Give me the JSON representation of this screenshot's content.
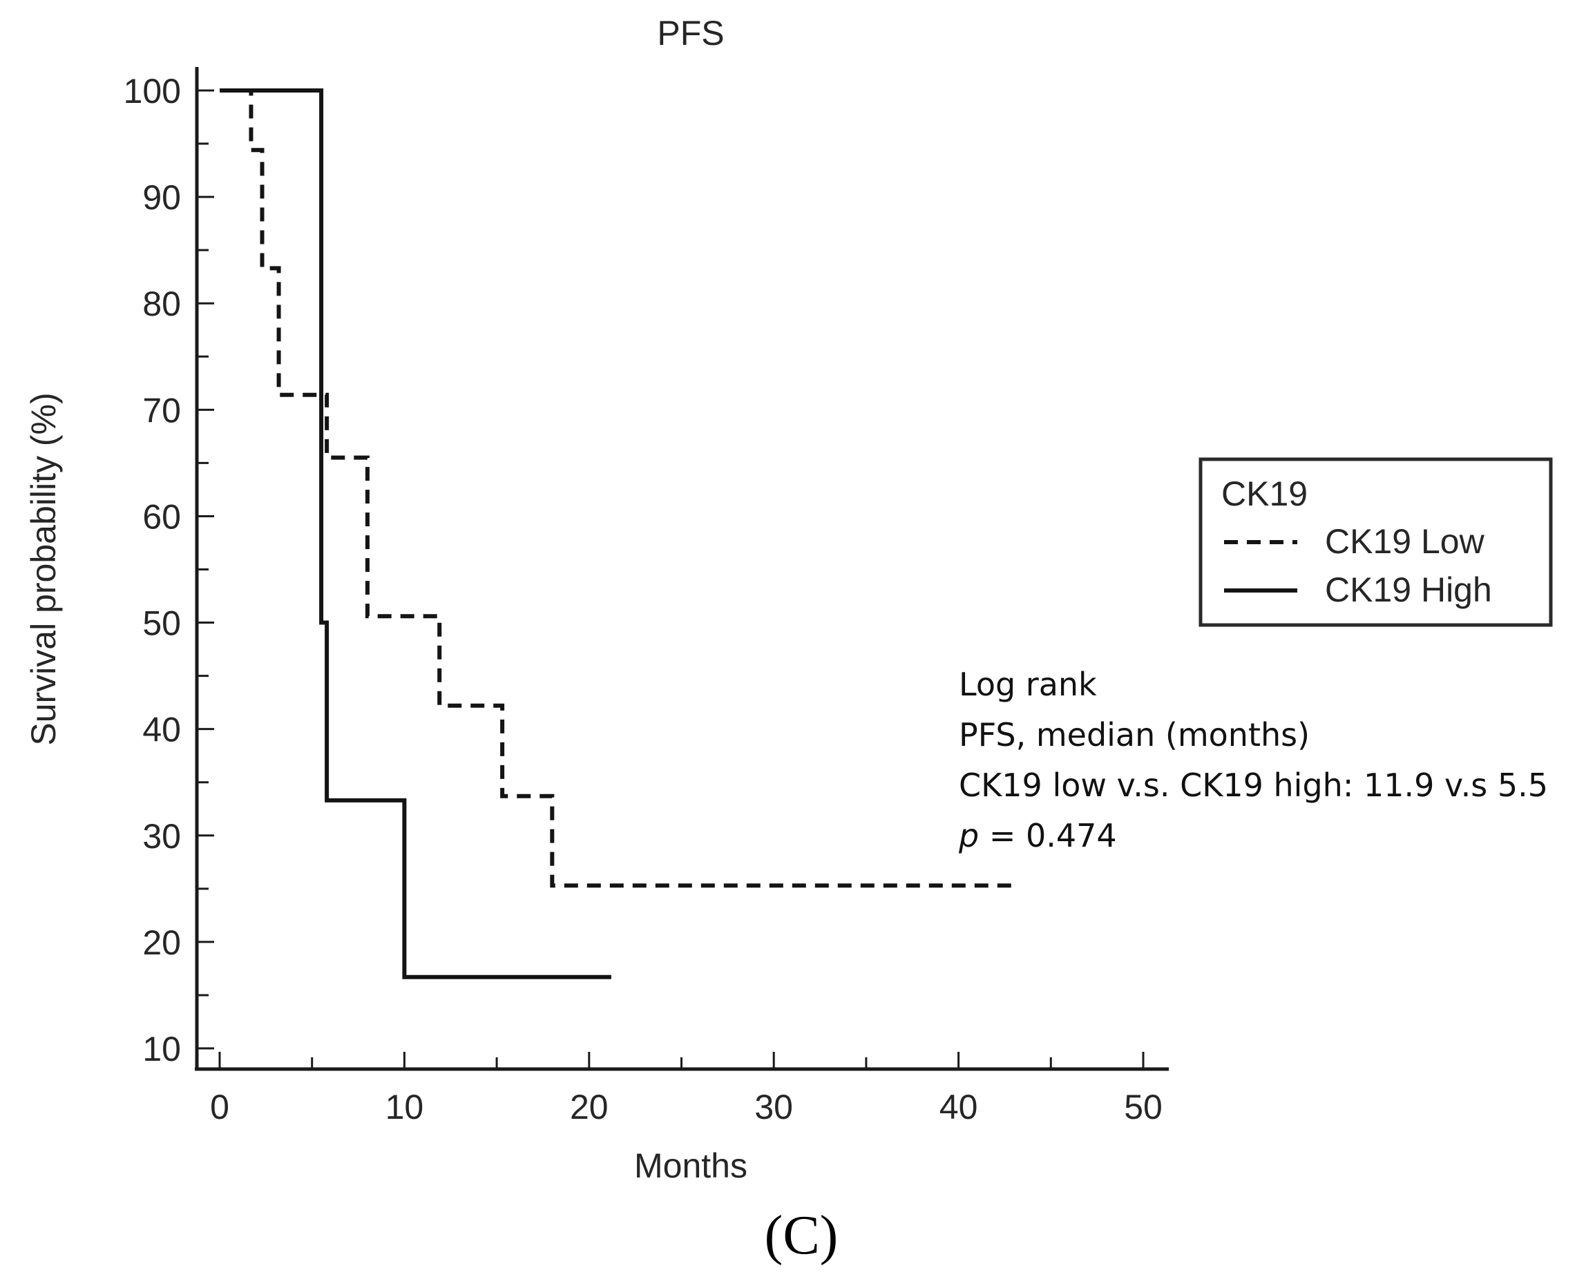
{
  "chart_data": {
    "type": "line",
    "subtype": "kaplan-meier step curve",
    "title": "PFS",
    "xlabel": "Months",
    "ylabel": "Survival probability (%)",
    "xlim": [
      0,
      50
    ],
    "ylim": [
      10,
      100
    ],
    "x_ticks": [
      0,
      10,
      20,
      30,
      40,
      50
    ],
    "y_ticks": [
      10,
      20,
      30,
      40,
      50,
      60,
      70,
      80,
      90,
      100
    ],
    "grid": false,
    "legend": {
      "title": "CK19",
      "position": "right",
      "entries": [
        {
          "label": "CK19 Low",
          "style": "dashed"
        },
        {
          "label": "CK19 High",
          "style": "solid"
        }
      ]
    },
    "series": [
      {
        "name": "CK19 Low",
        "style": "dashed",
        "x": [
          0,
          1.7,
          2.3,
          3.2,
          5.8,
          8.0,
          11.9,
          15.3,
          18.0,
          43.2
        ],
        "y": [
          100,
          94.4,
          83.3,
          71.4,
          65.5,
          50.6,
          42.2,
          33.7,
          25.3,
          25.3
        ]
      },
      {
        "name": "CK19 High",
        "style": "solid",
        "x": [
          0,
          5.5,
          5.8,
          10.0,
          21.2
        ],
        "y": [
          100,
          50.0,
          33.3,
          16.7,
          16.7
        ]
      }
    ],
    "annotations": {
      "line1": "Log rank",
      "line2": "PFS, median (months)",
      "line3": "CK19 low v.s. CK19 high: 11.9 v.s 5.5",
      "p_symbol": "p",
      "p_rest": " = 0.474"
    },
    "panel_label": "(C)"
  }
}
